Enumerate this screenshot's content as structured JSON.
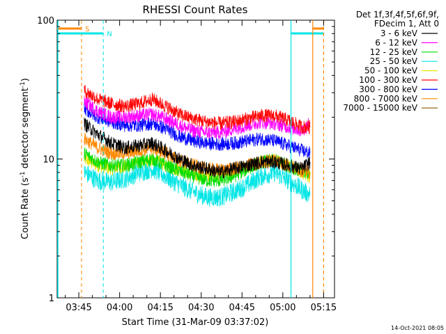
{
  "chart_data": {
    "type": "line",
    "title": "RHESSI Count Rates",
    "xlabel": "Start Time (31-Mar-09 03:37:02)",
    "ylabel_main": "Count Rate (s",
    "ylabel_sup1": "-1",
    "ylabel_mid": " detector segment",
    "ylabel_sup2": "-1",
    "ylabel_end": ")",
    "y_scale": "log",
    "ylim": [
      1,
      100
    ],
    "x_range": [
      "03:37:02",
      "05:19:00"
    ],
    "x_ticks": [
      "03:45",
      "04:00",
      "04:15",
      "04:30",
      "04:45",
      "05:00",
      "05:15"
    ],
    "y_ticks": [
      "1",
      "10",
      "100"
    ],
    "legend_header": [
      "Det 1f,3f,4f,5f,6f,9f,",
      "FDecim 1, Att 0"
    ],
    "legend_position": "top-right",
    "timestamp": "14-Oct-2021 08:05",
    "series": [
      {
        "name": "3 - 6 keV",
        "color": "#000000",
        "x": [
          "03:47",
          "03:52",
          "03:57",
          "04:02",
          "04:07",
          "04:12",
          "04:17",
          "04:22",
          "04:27",
          "04:32",
          "04:37",
          "04:42",
          "04:47",
          "04:52",
          "04:57",
          "05:02",
          "05:07",
          "05:10"
        ],
        "values": [
          18,
          15,
          13,
          12,
          12.5,
          13,
          11.5,
          10,
          9,
          8.5,
          8,
          8.5,
          9,
          9.5,
          9.5,
          9,
          8.5,
          9.5
        ]
      },
      {
        "name": "6 - 12 keV",
        "color": "#ff00ff",
        "x": [
          "03:47",
          "03:52",
          "03:57",
          "04:02",
          "04:07",
          "04:12",
          "04:17",
          "04:22",
          "04:27",
          "04:32",
          "04:37",
          "04:42",
          "04:47",
          "04:52",
          "04:57",
          "05:02",
          "05:07",
          "05:10"
        ],
        "values": [
          26,
          22,
          20,
          20,
          20.5,
          21,
          19.5,
          17.5,
          16,
          15.5,
          15.5,
          16.5,
          17.5,
          18.5,
          18,
          17,
          16,
          18
        ]
      },
      {
        "name": "12 - 25 keV",
        "color": "#00dd00",
        "x": [
          "03:47",
          "03:52",
          "03:57",
          "04:02",
          "04:07",
          "04:12",
          "04:17",
          "04:22",
          "04:27",
          "04:32",
          "04:37",
          "04:42",
          "04:47",
          "04:52",
          "04:57",
          "05:02",
          "05:07",
          "05:10"
        ],
        "values": [
          11,
          9.5,
          9,
          9,
          9.5,
          10,
          9,
          8.2,
          7.5,
          7,
          7,
          7.5,
          8.5,
          9.5,
          9.8,
          9,
          8,
          8
        ]
      },
      {
        "name": "25 - 50 keV",
        "color": "#00e5e5",
        "x": [
          "03:47",
          "03:52",
          "03:57",
          "04:02",
          "04:07",
          "04:12",
          "04:17",
          "04:22",
          "04:27",
          "04:32",
          "04:37",
          "04:42",
          "04:47",
          "04:52",
          "04:57",
          "05:02",
          "05:07",
          "05:10"
        ],
        "values": [
          8,
          7,
          6.8,
          7.2,
          8,
          8.5,
          7.5,
          6.5,
          5.8,
          5.3,
          5.3,
          5.8,
          6.5,
          7.5,
          8,
          7,
          6,
          5.5
        ]
      },
      {
        "name": "50 - 100 keV",
        "color": "#e5e500",
        "x": [
          "03:47",
          "03:52",
          "03:57",
          "04:02",
          "04:07",
          "04:12",
          "04:17",
          "04:22",
          "04:27",
          "04:32",
          "04:37",
          "04:42",
          "04:47",
          "04:52",
          "04:57",
          "05:02",
          "05:07",
          "05:10"
        ],
        "values": [
          10,
          9,
          8.5,
          8.8,
          9.3,
          9.8,
          9,
          8.3,
          7.8,
          7.5,
          7.5,
          8,
          8.8,
          9.5,
          9.8,
          9,
          8,
          7.5
        ]
      },
      {
        "name": "100 - 300 keV",
        "color": "#ff0000",
        "x": [
          "03:47",
          "03:52",
          "03:57",
          "04:02",
          "04:07",
          "04:12",
          "04:17",
          "04:22",
          "04:27",
          "04:32",
          "04:37",
          "04:42",
          "04:47",
          "04:52",
          "04:57",
          "05:02",
          "05:07",
          "05:10"
        ],
        "values": [
          31,
          27,
          25,
          24,
          25,
          27,
          24,
          21,
          19.5,
          18.5,
          18,
          18.5,
          19.5,
          20.5,
          20.5,
          19,
          17,
          17
        ]
      },
      {
        "name": "300 - 800 keV",
        "color": "#0000ff",
        "x": [
          "03:47",
          "03:52",
          "03:57",
          "04:02",
          "04:07",
          "04:12",
          "04:17",
          "04:22",
          "04:27",
          "04:32",
          "04:37",
          "04:42",
          "04:47",
          "04:52",
          "04:57",
          "05:02",
          "05:07",
          "05:10"
        ],
        "values": [
          23,
          20,
          18.5,
          17.5,
          17.5,
          18,
          16.5,
          14.5,
          13.5,
          13,
          12.8,
          13,
          13.5,
          14,
          13.5,
          12.5,
          11.5,
          11
        ]
      },
      {
        "name": "800 - 7000 keV",
        "color": "#ff8800",
        "x": [
          "03:47",
          "03:52",
          "03:57",
          "04:02",
          "04:07",
          "04:12",
          "04:17",
          "04:22",
          "04:27",
          "04:32",
          "04:37",
          "04:42",
          "04:47",
          "04:52",
          "04:57",
          "05:02",
          "05:07",
          "05:10"
        ],
        "values": [
          14,
          12,
          11,
          11,
          11.5,
          12,
          11,
          9.8,
          9,
          8.5,
          8.3,
          8.5,
          9,
          9.5,
          9.8,
          9,
          8.3,
          8
        ]
      },
      {
        "name": "7000 - 15000 keV",
        "color": "#8b5a00",
        "x": [],
        "values": []
      }
    ],
    "annotations": {
      "S": {
        "label": "S",
        "color": "#ff8800",
        "bar_from": "03:37:02",
        "bar_to": "03:46",
        "line_at": "03:46"
      },
      "N": {
        "label": "N",
        "color": "#00e5e5",
        "bar_from": "03:37:02",
        "bar_to": "03:54",
        "line_at": "03:54"
      },
      "end_marks": [
        {
          "color": "#00e5e5",
          "style": "solid",
          "at": "05:03"
        },
        {
          "color": "#00e5e5",
          "style": "solid_bar",
          "from": "05:03",
          "to": "05:15"
        },
        {
          "color": "#ff8800",
          "style": "solid",
          "at": "05:11"
        },
        {
          "color": "#ff8800",
          "style": "solid_bar",
          "from": "05:11",
          "to": "05:15"
        },
        {
          "color": "#ff8800",
          "style": "dashed",
          "at": "05:15"
        }
      ]
    }
  }
}
